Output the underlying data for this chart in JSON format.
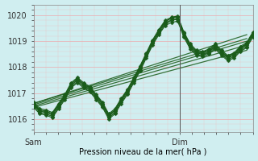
{
  "xlabel": "Pression niveau de la mer( hPa )",
  "bg_color": "#d0eef0",
  "grid_color_major": "#e8b4b8",
  "grid_color_minor": "#e8c8ca",
  "line_color": "#1a5c1a",
  "markersize": 2.5,
  "linewidth": 0.9,
  "ylim": [
    1015.5,
    1020.4
  ],
  "xlim": [
    0,
    36
  ],
  "sam_x": 0,
  "dim_x": 24,
  "xtick_positions": [
    0,
    24
  ],
  "xtick_labels": [
    "Sam",
    "Dim"
  ],
  "ytick_positions": [
    1016,
    1017,
    1018,
    1019,
    1020
  ],
  "ytick_labels": [
    "1016",
    "1017",
    "1018",
    "1019",
    "1020"
  ],
  "vline_x": 24,
  "series": [
    [
      1016.6,
      1016.3,
      1016.3,
      1016.2,
      1016.55,
      1016.9,
      1017.35,
      1017.55,
      1017.35,
      1017.2,
      1016.9,
      1016.6,
      1016.15,
      1016.35,
      1016.75,
      1017.1,
      1017.55,
      1018.0,
      1018.5,
      1019.0,
      1019.4,
      1019.75,
      1019.9,
      1019.95,
      1019.3,
      1018.85,
      1018.6,
      1018.55,
      1018.65,
      1018.85,
      1018.6,
      1018.4,
      1018.5,
      1018.75,
      1018.9,
      1019.3
    ],
    [
      1016.5,
      1016.25,
      1016.2,
      1016.1,
      1016.45,
      1016.8,
      1017.25,
      1017.45,
      1017.25,
      1017.1,
      1016.8,
      1016.5,
      1016.05,
      1016.25,
      1016.65,
      1017.0,
      1017.45,
      1017.9,
      1018.4,
      1018.9,
      1019.3,
      1019.65,
      1019.8,
      1019.85,
      1019.2,
      1018.75,
      1018.5,
      1018.45,
      1018.55,
      1018.75,
      1018.5,
      1018.3,
      1018.4,
      1018.65,
      1018.8,
      1019.2
    ],
    [
      1016.55,
      1016.3,
      1016.25,
      1016.15,
      1016.5,
      1016.85,
      1017.3,
      1017.5,
      1017.3,
      1017.15,
      1016.85,
      1016.55,
      1016.1,
      1016.3,
      1016.7,
      1017.05,
      1017.5,
      1017.95,
      1018.45,
      1018.95,
      1019.35,
      1019.7,
      1019.82,
      1019.87,
      1019.25,
      1018.8,
      1018.55,
      1018.5,
      1018.6,
      1018.8,
      1018.55,
      1018.35,
      1018.45,
      1018.7,
      1018.85,
      1019.25
    ],
    [
      1016.6,
      1016.35,
      1016.3,
      1016.2,
      1016.55,
      1016.9,
      1017.35,
      1017.55,
      1017.35,
      1017.2,
      1016.9,
      1016.6,
      1016.15,
      1016.35,
      1016.75,
      1017.1,
      1017.55,
      1018.0,
      1018.5,
      1019.0,
      1019.4,
      1019.75,
      1019.88,
      1019.93,
      1019.3,
      1018.85,
      1018.6,
      1018.55,
      1018.65,
      1018.85,
      1018.6,
      1018.4,
      1018.5,
      1018.75,
      1018.9,
      1019.3
    ],
    [
      1016.65,
      1016.4,
      1016.35,
      1016.25,
      1016.6,
      1016.95,
      1017.4,
      1017.6,
      1017.4,
      1017.25,
      1016.95,
      1016.65,
      1016.2,
      1016.4,
      1016.8,
      1017.15,
      1017.6,
      1018.05,
      1018.55,
      1019.05,
      1019.45,
      1019.8,
      1019.92,
      1019.97,
      1019.35,
      1018.9,
      1018.65,
      1018.6,
      1018.7,
      1018.9,
      1018.65,
      1018.45,
      1018.55,
      1018.8,
      1018.95,
      1019.35
    ],
    [
      1016.45,
      1016.2,
      1016.15,
      1016.05,
      1016.4,
      1016.75,
      1017.2,
      1017.4,
      1017.2,
      1017.05,
      1016.75,
      1016.45,
      1016.0,
      1016.2,
      1016.6,
      1016.95,
      1017.4,
      1017.85,
      1018.35,
      1018.85,
      1019.25,
      1019.6,
      1019.72,
      1019.77,
      1019.15,
      1018.7,
      1018.45,
      1018.4,
      1018.5,
      1018.7,
      1018.45,
      1018.25,
      1018.35,
      1018.6,
      1018.75,
      1019.15
    ]
  ],
  "trend_lines": [
    {
      "x": [
        0,
        35
      ],
      "y": [
        1016.6,
        1019.25
      ]
    },
    {
      "x": [
        0,
        35
      ],
      "y": [
        1016.5,
        1018.85
      ]
    },
    {
      "x": [
        0,
        35
      ],
      "y": [
        1016.45,
        1018.65
      ]
    },
    {
      "x": [
        0,
        35
      ],
      "y": [
        1016.55,
        1019.0
      ]
    },
    {
      "x": [
        0,
        35
      ],
      "y": [
        1016.6,
        1019.1
      ]
    }
  ]
}
